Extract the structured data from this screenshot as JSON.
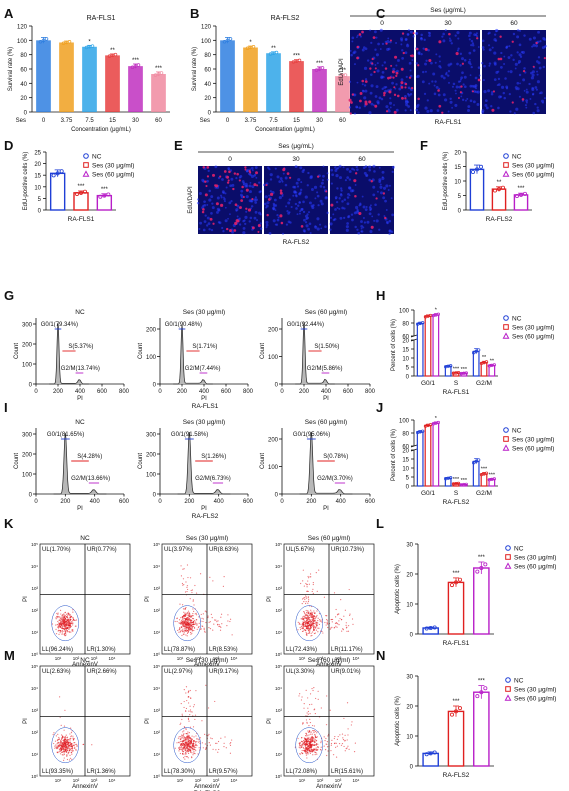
{
  "panel_letters": [
    "A",
    "B",
    "C",
    "D",
    "E",
    "F",
    "G",
    "H",
    "I",
    "J",
    "K",
    "L",
    "M",
    "N"
  ],
  "colors": {
    "nc": "#1f3fd6",
    "ses30": "#e02020",
    "ses60": "#b81ec8",
    "bar": [
      "#2f7fe0",
      "#f0a020",
      "#2ea4e8",
      "#e84040",
      "#c030c0",
      "#f08aa0"
    ],
    "flow_dot": "#e0181e",
    "flow_outline": "#2050c8",
    "cycle_label_g0": "#1e3cd0",
    "cycle_label_s": "#e02020",
    "cycle_label_g2": "#b81ec8",
    "micro_bg": "#0a0d6a",
    "micro_red": "#e0206a"
  },
  "chart_data": [
    {
      "id": "A",
      "type": "bar",
      "title": "RA-FLS1",
      "xlabel": "Concentration (μg/mL)",
      "ylabel": "Survival rate (%)",
      "categories": [
        "0",
        "3.75",
        "7.5",
        "15",
        "30",
        "60"
      ],
      "cat_prefix": "Ses",
      "values": [
        100,
        97,
        91,
        79,
        64,
        53
      ],
      "errors": [
        4,
        2,
        2,
        2,
        3,
        3
      ],
      "sig": [
        "",
        "",
        "*",
        "**",
        "***",
        "***"
      ],
      "ylim": [
        0,
        120
      ],
      "yticks": [
        0,
        20,
        40,
        60,
        80,
        100,
        120
      ]
    },
    {
      "id": "B",
      "type": "bar",
      "title": "RA-FLS2",
      "xlabel": "Concentration (μg/mL)",
      "ylabel": "Survival rate (%)",
      "categories": [
        "0",
        "3.75",
        "7.5",
        "15",
        "30",
        "60"
      ],
      "cat_prefix": "Ses",
      "values": [
        100,
        90,
        82,
        71,
        60,
        50
      ],
      "errors": [
        4,
        2,
        2,
        2,
        3,
        3
      ],
      "sig": [
        "",
        "*",
        "**",
        "***",
        "***",
        "***"
      ],
      "ylim": [
        0,
        120
      ],
      "yticks": [
        0,
        20,
        40,
        60,
        80,
        100,
        120
      ]
    },
    {
      "id": "D",
      "type": "bar",
      "xlabel": "RA-FLS1",
      "ylabel": "EdU-positive cells (%)",
      "categories": [
        "NC",
        "Ses (30 μg/ml)",
        "Ses (60 μg/ml)"
      ],
      "values": [
        15.8,
        7.4,
        6.2
      ],
      "errors": [
        1.5,
        0.8,
        0.8
      ],
      "sig": [
        "",
        "***",
        "***"
      ],
      "ylim": [
        0,
        25
      ],
      "yticks": [
        0,
        5,
        10,
        15,
        20,
        25
      ],
      "legend": [
        "NC",
        "Ses (30 μg/ml)",
        "Ses (60 μg/ml)"
      ]
    },
    {
      "id": "F",
      "type": "bar",
      "xlabel": "RA-FLS2",
      "ylabel": "EdU-positive cells (%)",
      "categories": [
        "NC",
        "Ses (30 μg/ml)",
        "Ses (60 μg/ml)"
      ],
      "values": [
        14.0,
        7.2,
        5.2
      ],
      "errors": [
        1.5,
        0.8,
        0.6
      ],
      "sig": [
        "",
        "**",
        "***"
      ],
      "ylim": [
        0,
        20
      ],
      "yticks": [
        0,
        5,
        10,
        15,
        20
      ],
      "legend": [
        "NC",
        "Ses (30 μg/ml)",
        "Ses (60 μg/ml)"
      ]
    },
    {
      "id": "H",
      "type": "bar",
      "xlabel": "RA-FLS1",
      "ylabel": "Percent of cells (%)",
      "categories": [
        "G0/1",
        "S",
        "G2/M"
      ],
      "series": [
        {
          "name": "NC",
          "values": [
            79.3,
            5.4,
            13.7
          ],
          "errors": [
            2,
            0.5,
            1.5
          ]
        },
        {
          "name": "Ses (30 μg/ml)",
          "values": [
            90.5,
            1.7,
            7.4
          ],
          "errors": [
            2,
            0.3,
            0.8
          ]
        },
        {
          "name": "Ses (60 μg/ml)",
          "values": [
            92.4,
            1.5,
            5.9
          ],
          "errors": [
            2,
            0.3,
            0.6
          ]
        }
      ],
      "sig": [
        [
          "",
          "",
          "*"
        ],
        [
          "",
          "***",
          "***"
        ],
        [
          "",
          "**",
          "**"
        ]
      ],
      "yticks_lower": [
        0,
        5,
        10,
        15,
        20
      ],
      "yticks_upper": [
        60,
        80,
        100
      ],
      "legend": [
        "NC",
        "Ses (30 μg/ml)",
        "Ses (60 μg/ml)"
      ]
    },
    {
      "id": "J",
      "type": "bar",
      "xlabel": "RA-FLS2",
      "ylabel": "Percent of cells (%)",
      "categories": [
        "G0/1",
        "S",
        "G2/M"
      ],
      "series": [
        {
          "name": "NC",
          "values": [
            81.7,
            4.3,
            13.7
          ],
          "errors": [
            2,
            0.5,
            1.5
          ]
        },
        {
          "name": "Ses (30 μg/ml)",
          "values": [
            91.6,
            1.3,
            6.7
          ],
          "errors": [
            2,
            0.3,
            0.8
          ]
        },
        {
          "name": "Ses (60 μg/ml)",
          "values": [
            95.1,
            0.8,
            3.7
          ],
          "errors": [
            2,
            0.2,
            0.5
          ]
        }
      ],
      "sig": [
        [
          "",
          "",
          "*"
        ],
        [
          "",
          "***",
          "***"
        ],
        [
          "",
          "***",
          "***"
        ]
      ],
      "yticks_lower": [
        0,
        5,
        10,
        15,
        20
      ],
      "yticks_upper": [
        60,
        80,
        100
      ],
      "legend": [
        "NC",
        "Ses (30 μg/ml)",
        "Ses (60 μg/ml)"
      ]
    },
    {
      "id": "L",
      "type": "bar",
      "xlabel": "RA-FLS1",
      "ylabel": "Apoptotic cells (%)",
      "categories": [
        "NC",
        "Ses (30 μg/ml)",
        "Ses (60 μg/ml)"
      ],
      "values": [
        2.0,
        17.2,
        22.0
      ],
      "errors": [
        0.3,
        1.5,
        2.0
      ],
      "sig": [
        "",
        "***",
        "***"
      ],
      "ylim": [
        0,
        30
      ],
      "yticks": [
        0,
        10,
        20,
        30
      ],
      "legend": [
        "NC",
        "Ses (30 μg/ml)",
        "Ses (60 μg/ml)"
      ]
    },
    {
      "id": "N",
      "type": "bar",
      "xlabel": "RA-FLS2",
      "ylabel": "Apoptotic cells (%)",
      "categories": [
        "NC",
        "Ses (30 μg/ml)",
        "Ses (60 μg/ml)"
      ],
      "values": [
        4.2,
        18.2,
        24.6
      ],
      "errors": [
        0.5,
        1.8,
        2.2
      ],
      "sig": [
        "",
        "***",
        "***"
      ],
      "ylim": [
        0,
        30
      ],
      "yticks": [
        0,
        10,
        20,
        30
      ],
      "legend": [
        "NC",
        "Ses (30 μg/ml)",
        "Ses (60 μg/ml)"
      ]
    },
    {
      "id": "G",
      "type": "histogram",
      "row_label": "RA-FLS1",
      "xlabel": "PI",
      "ylabel": "Count",
      "xticks": [
        0,
        200,
        400,
        600,
        800
      ],
      "plots": [
        {
          "title": "NC",
          "yticks": [
            0,
            100,
            200,
            300
          ],
          "ymax": 330,
          "peak": 305,
          "labels": {
            "g0": "G0/1(79.34%)",
            "s": "S(5.37%)",
            "g2": "G2/M(13.74%)"
          }
        },
        {
          "title": "Ses (30 μg/ml)",
          "yticks": [
            0,
            100,
            200
          ],
          "ymax": 240,
          "peak": 215,
          "labels": {
            "g0": "G0/1(90.48%)",
            "s": "S(1.71%)",
            "g2": "G2/M(7.44%)"
          }
        },
        {
          "title": "Ses (60 μg/ml)",
          "yticks": [
            0,
            100,
            200
          ],
          "ymax": 240,
          "peak": 225,
          "labels": {
            "g0": "G0/1(92.44%)",
            "s": "S(1.50%)",
            "g2": "G2/M(5.86%)"
          }
        }
      ]
    },
    {
      "id": "I",
      "type": "histogram",
      "row_label": "RA-FLS2",
      "xlabel": "PI",
      "ylabel": "Count",
      "xticks": [
        0,
        200,
        400,
        600
      ],
      "plots": [
        {
          "title": "NC",
          "yticks": [
            0,
            100,
            200,
            300
          ],
          "ymax": 330,
          "peak": 305,
          "labels": {
            "g0": "G0/1(81.65%)",
            "s": "S(4.28%)",
            "g2": "G2/M(13.66%)"
          }
        },
        {
          "title": "Ses (30 μg/ml)",
          "yticks": [
            0,
            100,
            200,
            300
          ],
          "ymax": 330,
          "peak": 310,
          "labels": {
            "g0": "G0/1(91.58%)",
            "s": "S(1.26%)",
            "g2": "G2/M(6.73%)"
          }
        },
        {
          "title": "Ses (60 μg/ml)",
          "yticks": [
            0,
            100,
            200
          ],
          "ymax": 240,
          "peak": 225,
          "labels": {
            "g0": "G0/1(95.06%)",
            "s": "S(0.78%)",
            "g2": "G2/M(3.70%)"
          }
        }
      ]
    },
    {
      "id": "K",
      "type": "scatter",
      "row_label": "RA-FLS1",
      "xlabel": "AnnexinV",
      "ylabel": "PI",
      "tick_labels": [
        "10⁰",
        "10¹",
        "10²",
        "10³",
        "10⁴",
        "10⁵"
      ],
      "plots": [
        {
          "title": "NC",
          "quadrants": {
            "ul": "UL(1.70%)",
            "ur": "UR(0.77%)",
            "ll": "LL(96.24%)",
            "lr": "LR(1.30%)"
          }
        },
        {
          "title": "Ses (30 μg/ml)",
          "quadrants": {
            "ul": "UL(3.97%)",
            "ur": "UR(8.63%)",
            "ll": "LL(78.87%)",
            "lr": "LR(8.53%)"
          }
        },
        {
          "title": "Ses (60 μg/ml)",
          "quadrants": {
            "ul": "UL(5.67%)",
            "ur": "UR(10.73%)",
            "ll": "LL(72.43%)",
            "lr": "LR(11.17%)"
          }
        }
      ]
    },
    {
      "id": "M",
      "type": "scatter",
      "row_label": "RA-FLS2",
      "xlabel": "AnnexinV",
      "ylabel": "PI",
      "tick_labels": [
        "10⁰",
        "10¹",
        "10²",
        "10³",
        "10⁴",
        "10⁵"
      ],
      "plots": [
        {
          "title": "NC",
          "quadrants": {
            "ul": "UL(2.63%)",
            "ur": "UR(2.66%)",
            "ll": "LL(93.35%)",
            "lr": "LR(1.36%)"
          }
        },
        {
          "title": "Ses (30 μg/ml)",
          "quadrants": {
            "ul": "UL(2.97%)",
            "ur": "UR(9.17%)",
            "ll": "LL(78.30%)",
            "lr": "LR(9.57%)"
          }
        },
        {
          "title": "Ses (60 μg/ml)",
          "quadrants": {
            "ul": "UL(3.30%)",
            "ur": "UR(9.01%)",
            "ll": "LL(72.08%)",
            "lr": "LR(15.61%)"
          }
        }
      ]
    }
  ],
  "micrographs": [
    {
      "id": "C",
      "header": "Ses (μg/mL)",
      "columns": [
        "0",
        "30",
        "60"
      ],
      "side_label": "EdU/DAPI",
      "caption": "RA-FLS1",
      "red_density": [
        55,
        18,
        12
      ]
    },
    {
      "id": "E",
      "header": "Ses (μg/mL)",
      "columns": [
        "0",
        "30",
        "60"
      ],
      "side_label": "EdU/DAPI",
      "caption": "RA-FLS2",
      "red_density": [
        50,
        15,
        10
      ]
    }
  ]
}
